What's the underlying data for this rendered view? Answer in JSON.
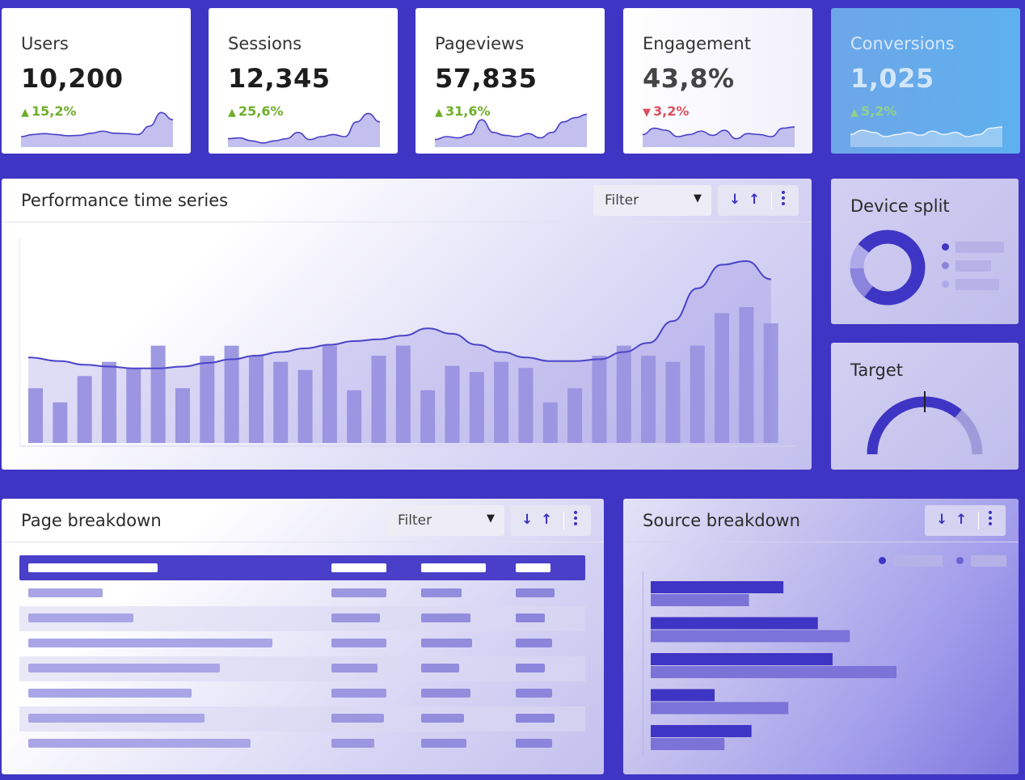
{
  "colors": {
    "accent": "#3f35c4",
    "bar": "#9f9be2",
    "up": "#6fae2a",
    "down": "#d9505f"
  },
  "kpis": [
    {
      "label": "Users",
      "value": "10,200",
      "delta": "15,2%",
      "direction": "up",
      "trend": [
        0.25,
        0.3,
        0.32,
        0.3,
        0.27,
        0.28,
        0.33,
        0.38,
        0.33,
        0.32,
        0.3,
        0.5,
        0.82,
        0.65
      ]
    },
    {
      "label": "Sessions",
      "value": "12,345",
      "delta": "25,6%",
      "direction": "up",
      "trend": [
        0.2,
        0.22,
        0.15,
        0.1,
        0.15,
        0.2,
        0.35,
        0.18,
        0.25,
        0.3,
        0.25,
        0.6,
        0.8,
        0.6
      ]
    },
    {
      "label": "Pageviews",
      "value": "57,835",
      "delta": "31,6%",
      "direction": "up",
      "trend": [
        0.18,
        0.25,
        0.22,
        0.3,
        0.65,
        0.35,
        0.28,
        0.25,
        0.32,
        0.22,
        0.35,
        0.6,
        0.7,
        0.78
      ]
    },
    {
      "label": "Engagement",
      "value": "43,8%",
      "delta": "3,2%",
      "direction": "down",
      "trend": [
        0.3,
        0.45,
        0.4,
        0.25,
        0.3,
        0.38,
        0.28,
        0.4,
        0.2,
        0.32,
        0.3,
        0.25,
        0.45,
        0.48
      ]
    },
    {
      "label": "Conversions",
      "value": "1,025",
      "delta": "5,2%",
      "direction": "up",
      "trend": [
        0.3,
        0.4,
        0.35,
        0.25,
        0.3,
        0.35,
        0.28,
        0.38,
        0.3,
        0.35,
        0.25,
        0.3,
        0.45,
        0.48
      ]
    }
  ],
  "performance": {
    "title": "Performance time series",
    "filter_label": "Filter",
    "sort_down": "↓",
    "sort_up": "↑",
    "bars": [
      0.27,
      0.2,
      0.33,
      0.4,
      0.37,
      0.48,
      0.27,
      0.43,
      0.48,
      0.43,
      0.4,
      0.36,
      0.48,
      0.26,
      0.43,
      0.48,
      0.26,
      0.38,
      0.35,
      0.4,
      0.37,
      0.2,
      0.27,
      0.43,
      0.48,
      0.43,
      0.4,
      0.48,
      0.64,
      0.67,
      0.59
    ],
    "line": [
      0.47,
      0.45,
      0.43,
      0.42,
      0.41,
      0.41,
      0.42,
      0.44,
      0.46,
      0.48,
      0.5,
      0.52,
      0.54,
      0.56,
      0.57,
      0.59,
      0.63,
      0.6,
      0.54,
      0.5,
      0.47,
      0.45,
      0.45,
      0.46,
      0.5,
      0.55,
      0.67,
      0.85,
      0.98,
      1.0,
      0.9
    ]
  },
  "device": {
    "title": "Device split",
    "slices": [
      0.75,
      0.14,
      0.11
    ]
  },
  "target": {
    "title": "Target",
    "progress": 0.72,
    "marker": 0.5
  },
  "pages": {
    "title": "Page breakdown",
    "filter_label": "Filter",
    "sort_down": "↓",
    "sort_up": "↑"
  },
  "sources": {
    "title": "Source breakdown",
    "sort_down": "↓",
    "sort_up": "↑",
    "series_a": [
      0.54,
      0.68,
      0.74,
      0.26,
      0.41
    ],
    "series_b": [
      0.4,
      0.81,
      1.0,
      0.56,
      0.3
    ]
  }
}
